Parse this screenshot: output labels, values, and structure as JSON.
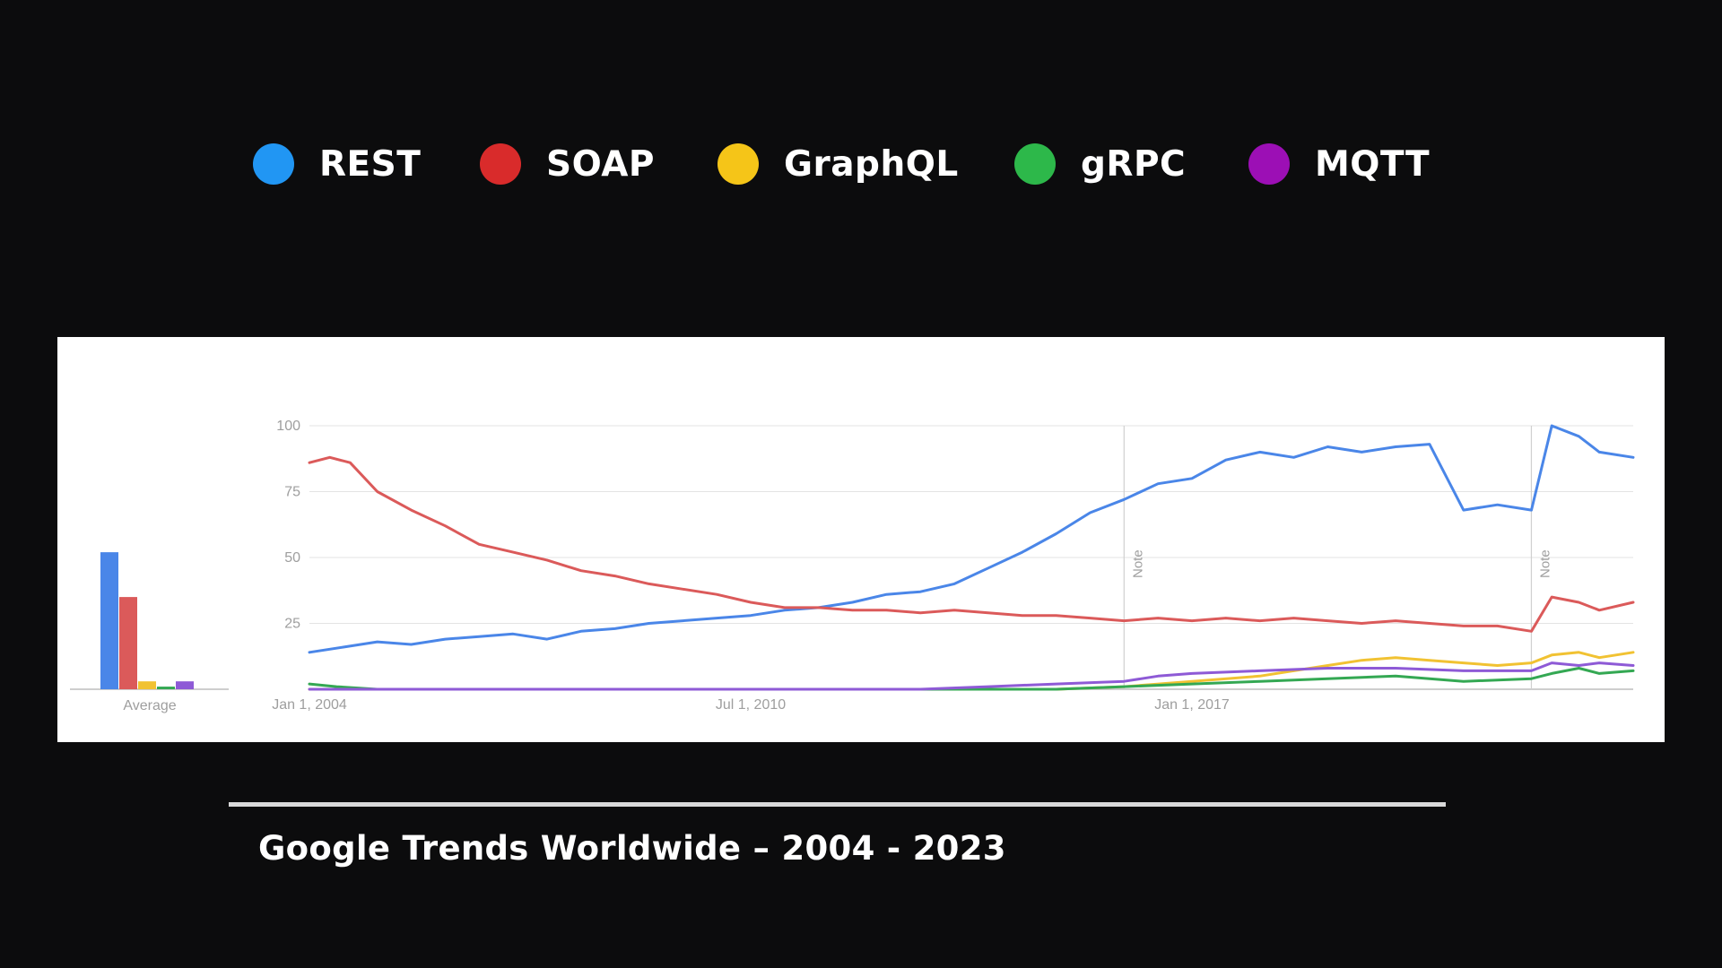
{
  "legend": [
    {
      "label": "REST",
      "color": "#2196f3"
    },
    {
      "label": "SOAP",
      "color": "#d92b2b"
    },
    {
      "label": "GraphQL",
      "color": "#f5c518"
    },
    {
      "label": "gRPC",
      "color": "#2db84a"
    },
    {
      "label": "MQTT",
      "color": "#9c0fb5"
    }
  ],
  "caption": "Google Trends Worldwide – 2004 - 2023",
  "chart_data": {
    "type": "line",
    "y_ticks": [
      "100",
      "75",
      "50",
      "25"
    ],
    "ylim": [
      0,
      100
    ],
    "x_tick_labels": [
      {
        "label": "Jan 1, 2004",
        "year": 2004.0
      },
      {
        "label": "Jul 1, 2010",
        "year": 2010.5
      },
      {
        "label": "Jan 1, 2017",
        "year": 2017.0
      }
    ],
    "xlim": [
      2004.0,
      2023.5
    ],
    "notes": [
      {
        "label": "Note",
        "year": 2016.0
      },
      {
        "label": "Note",
        "year": 2022.0
      }
    ],
    "average_label": "Average",
    "averages": [
      {
        "name": "REST",
        "value": 52,
        "color": "#4a86e8"
      },
      {
        "name": "SOAP",
        "value": 35,
        "color": "#db5a5a"
      },
      {
        "name": "GraphQL",
        "value": 3,
        "color": "#f1c232"
      },
      {
        "name": "gRPC",
        "value": 1,
        "color": "#34a853"
      },
      {
        "name": "MQTT",
        "value": 3,
        "color": "#8e5ad6"
      }
    ],
    "series": [
      {
        "name": "REST",
        "color": "#4a86e8",
        "points": [
          [
            2004.0,
            14
          ],
          [
            2004.5,
            16
          ],
          [
            2005.0,
            18
          ],
          [
            2005.5,
            17
          ],
          [
            2006.0,
            19
          ],
          [
            2006.5,
            20
          ],
          [
            2007.0,
            21
          ],
          [
            2007.5,
            19
          ],
          [
            2008.0,
            22
          ],
          [
            2008.5,
            23
          ],
          [
            2009.0,
            25
          ],
          [
            2009.5,
            26
          ],
          [
            2010.0,
            27
          ],
          [
            2010.5,
            28
          ],
          [
            2011.0,
            30
          ],
          [
            2011.5,
            31
          ],
          [
            2012.0,
            33
          ],
          [
            2012.5,
            36
          ],
          [
            2013.0,
            37
          ],
          [
            2013.5,
            40
          ],
          [
            2014.0,
            46
          ],
          [
            2014.5,
            52
          ],
          [
            2015.0,
            59
          ],
          [
            2015.5,
            67
          ],
          [
            2016.0,
            72
          ],
          [
            2016.5,
            78
          ],
          [
            2017.0,
            80
          ],
          [
            2017.5,
            87
          ],
          [
            2018.0,
            90
          ],
          [
            2018.5,
            88
          ],
          [
            2019.0,
            92
          ],
          [
            2019.5,
            90
          ],
          [
            2020.0,
            92
          ],
          [
            2020.5,
            93
          ],
          [
            2021.0,
            68
          ],
          [
            2021.5,
            70
          ],
          [
            2022.0,
            68
          ],
          [
            2022.3,
            100
          ],
          [
            2022.7,
            96
          ],
          [
            2023.0,
            90
          ],
          [
            2023.5,
            88
          ]
        ]
      },
      {
        "name": "SOAP",
        "color": "#db5a5a",
        "points": [
          [
            2004.0,
            86
          ],
          [
            2004.3,
            88
          ],
          [
            2004.6,
            86
          ],
          [
            2005.0,
            75
          ],
          [
            2005.5,
            68
          ],
          [
            2006.0,
            62
          ],
          [
            2006.5,
            55
          ],
          [
            2007.0,
            52
          ],
          [
            2007.5,
            49
          ],
          [
            2008.0,
            45
          ],
          [
            2008.5,
            43
          ],
          [
            2009.0,
            40
          ],
          [
            2009.5,
            38
          ],
          [
            2010.0,
            36
          ],
          [
            2010.5,
            33
          ],
          [
            2011.0,
            31
          ],
          [
            2011.5,
            31
          ],
          [
            2012.0,
            30
          ],
          [
            2012.5,
            30
          ],
          [
            2013.0,
            29
          ],
          [
            2013.5,
            30
          ],
          [
            2014.0,
            29
          ],
          [
            2014.5,
            28
          ],
          [
            2015.0,
            28
          ],
          [
            2015.5,
            27
          ],
          [
            2016.0,
            26
          ],
          [
            2016.5,
            27
          ],
          [
            2017.0,
            26
          ],
          [
            2017.5,
            27
          ],
          [
            2018.0,
            26
          ],
          [
            2018.5,
            27
          ],
          [
            2019.0,
            26
          ],
          [
            2019.5,
            25
          ],
          [
            2020.0,
            26
          ],
          [
            2020.5,
            25
          ],
          [
            2021.0,
            24
          ],
          [
            2021.5,
            24
          ],
          [
            2022.0,
            22
          ],
          [
            2022.3,
            35
          ],
          [
            2022.7,
            33
          ],
          [
            2023.0,
            30
          ],
          [
            2023.5,
            33
          ]
        ]
      },
      {
        "name": "GraphQL",
        "color": "#f1c232",
        "points": [
          [
            2004.0,
            0
          ],
          [
            2015.0,
            0
          ],
          [
            2016.0,
            1
          ],
          [
            2017.0,
            3
          ],
          [
            2018.0,
            5
          ],
          [
            2018.5,
            7
          ],
          [
            2019.0,
            9
          ],
          [
            2019.5,
            11
          ],
          [
            2020.0,
            12
          ],
          [
            2020.5,
            11
          ],
          [
            2021.0,
            10
          ],
          [
            2021.5,
            9
          ],
          [
            2022.0,
            10
          ],
          [
            2022.3,
            13
          ],
          [
            2022.7,
            14
          ],
          [
            2023.0,
            12
          ],
          [
            2023.5,
            14
          ]
        ]
      },
      {
        "name": "gRPC",
        "color": "#34a853",
        "points": [
          [
            2004.0,
            2
          ],
          [
            2004.4,
            1
          ],
          [
            2005.0,
            0
          ],
          [
            2006.0,
            0
          ],
          [
            2015.0,
            0
          ],
          [
            2016.0,
            1
          ],
          [
            2017.0,
            2
          ],
          [
            2018.0,
            3
          ],
          [
            2019.0,
            4
          ],
          [
            2020.0,
            5
          ],
          [
            2021.0,
            3
          ],
          [
            2022.0,
            4
          ],
          [
            2022.3,
            6
          ],
          [
            2022.7,
            8
          ],
          [
            2023.0,
            6
          ],
          [
            2023.5,
            7
          ]
        ]
      },
      {
        "name": "MQTT",
        "color": "#8e5ad6",
        "points": [
          [
            2004.0,
            0
          ],
          [
            2013.0,
            0
          ],
          [
            2014.0,
            1
          ],
          [
            2015.0,
            2
          ],
          [
            2016.0,
            3
          ],
          [
            2016.5,
            5
          ],
          [
            2017.0,
            6
          ],
          [
            2018.0,
            7
          ],
          [
            2019.0,
            8
          ],
          [
            2020.0,
            8
          ],
          [
            2021.0,
            7
          ],
          [
            2022.0,
            7
          ],
          [
            2022.3,
            10
          ],
          [
            2022.7,
            9
          ],
          [
            2023.0,
            10
          ],
          [
            2023.5,
            9
          ]
        ]
      }
    ]
  }
}
